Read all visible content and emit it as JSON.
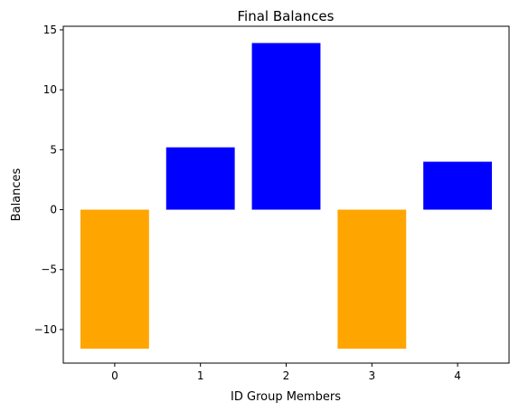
{
  "chart_data": {
    "type": "bar",
    "title": "Final Balances",
    "xlabel": "ID Group Members",
    "ylabel": "Balances",
    "categories": [
      "0",
      "1",
      "2",
      "3",
      "4"
    ],
    "values": [
      -11.6,
      5.2,
      13.9,
      -11.6,
      4.0
    ],
    "colors": [
      "#FFA500",
      "#0000FF",
      "#0000FF",
      "#FFA500",
      "#0000FF"
    ],
    "ylim": [
      -12.8,
      15.3
    ],
    "yticks": [
      15,
      10,
      5,
      0,
      -5,
      -10
    ],
    "ytick_labels": [
      "15",
      "10",
      "5",
      "0",
      "−5",
      "−10"
    ],
    "grid": false,
    "legend": "none"
  }
}
